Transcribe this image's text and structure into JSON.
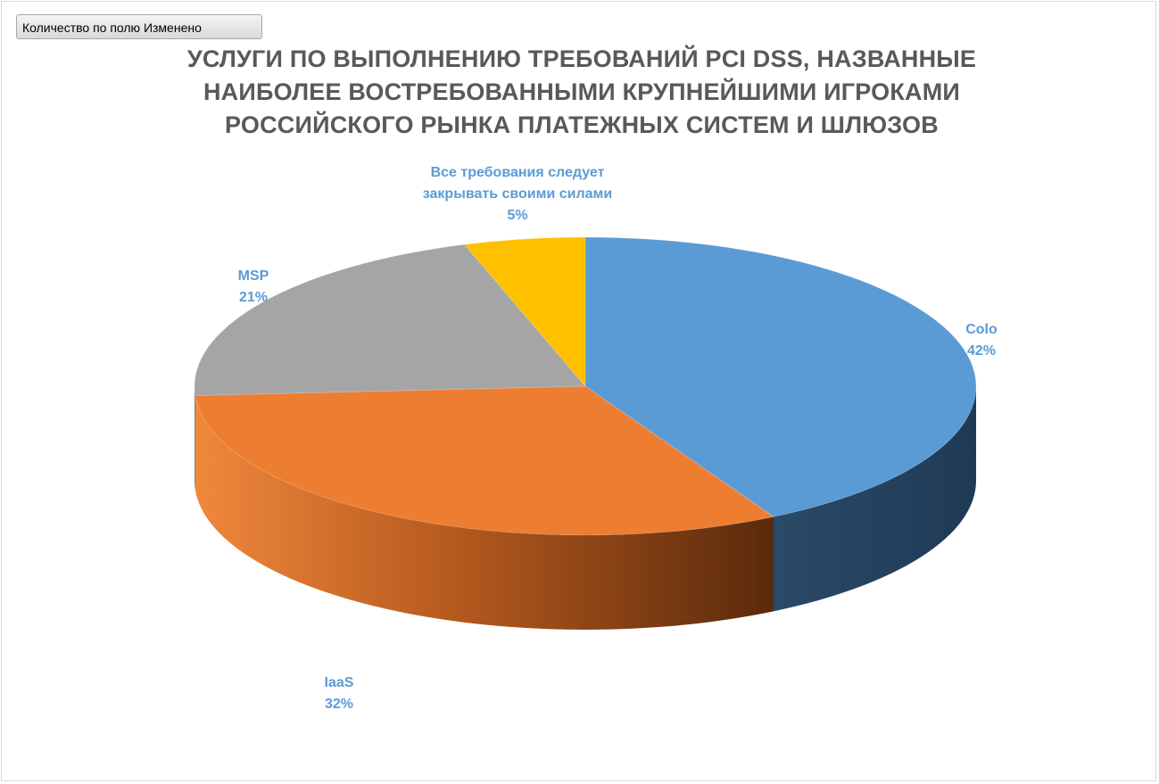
{
  "pivot_field_button": "Количество по полю Изменено",
  "chart_data": {
    "type": "pie",
    "title": [
      "УСЛУГИ ПО ВЫПОЛНЕНИЮ ТРЕБОВАНИЙ PCI DSS, НАЗВАННЫЕ",
      "НАИБОЛЕЕ ВОСТРЕБОВАННЫМИ КРУПНЕЙШИМИ ИГРОКАМИ",
      "РОССИЙСКОГО РЫНКА ПЛАТЕЖНЫХ СИСТЕМ И ШЛЮЗОВ"
    ],
    "three_d": true,
    "label_color": "#5b9bd5",
    "slices": [
      {
        "name": "Colo",
        "label_lines": [
          "Colo"
        ],
        "value": 42,
        "label": "42%",
        "color": "#5b9bd5"
      },
      {
        "name": "IaaS",
        "label_lines": [
          "IaaS"
        ],
        "value": 32,
        "label": "32%",
        "color": "#ed7d31"
      },
      {
        "name": "MSP",
        "label_lines": [
          "MSP"
        ],
        "value": 21,
        "label": "21%",
        "color": "#a5a5a5"
      },
      {
        "name": "Все требования следует закрывать своими силами",
        "label_lines": [
          "Все требования следует",
          "закрывать своими силами"
        ],
        "value": 5,
        "label": "5%",
        "color": "#ffc000"
      }
    ]
  }
}
